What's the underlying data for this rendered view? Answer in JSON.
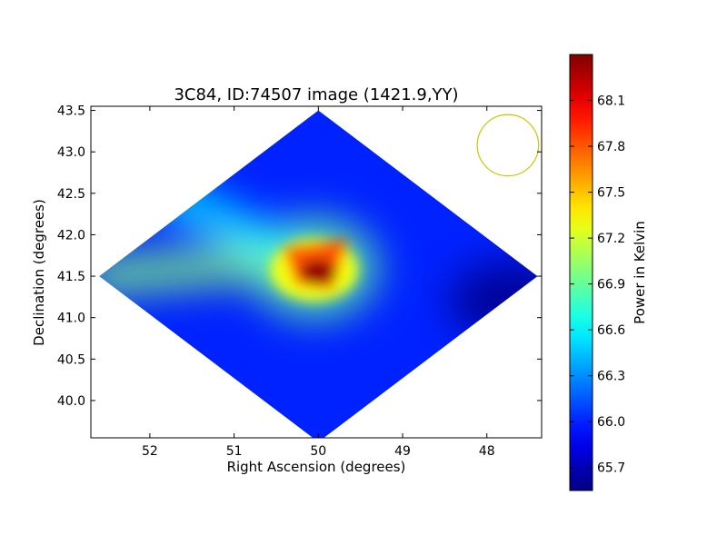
{
  "chart_data": {
    "type": "heatmap",
    "title": "3C84, ID:74507 image (1421.9,YY)",
    "xlabel": "Right Ascension (degrees)",
    "ylabel": "Declination (degrees)",
    "xlim": [
      52.7,
      47.35
    ],
    "ylim": [
      39.55,
      43.55
    ],
    "x_ticks": [
      52,
      51,
      50,
      49,
      48
    ],
    "x_tick_labels": [
      "52",
      "51",
      "50",
      "49",
      "48"
    ],
    "y_ticks": [
      40.0,
      40.5,
      41.0,
      41.5,
      42.0,
      42.5,
      43.0,
      43.5
    ],
    "y_tick_labels": [
      "40.0",
      "40.5",
      "41.0",
      "41.5",
      "42.0",
      "42.5",
      "43.0",
      "43.5"
    ],
    "colorbar": {
      "label": "Power in Kelvin",
      "min": 65.55,
      "max": 68.4,
      "ticks": [
        65.7,
        66.0,
        66.3,
        66.6,
        66.9,
        67.2,
        67.5,
        67.8,
        68.1
      ],
      "tick_labels": [
        "65.7",
        "66.0",
        "66.3",
        "66.6",
        "66.9",
        "67.2",
        "67.5",
        "67.8",
        "68.1"
      ],
      "colormap": "jet"
    },
    "map_center": {
      "ra": 50.0,
      "dec": 41.5
    },
    "map_half_extent": {
      "ra": 2.6,
      "dec": 2.0
    },
    "background_level": 66.0,
    "peak": {
      "ra": 50.0,
      "dec": 41.55,
      "value": 68.35
    },
    "features": [
      {
        "kind": "bright-core",
        "ra": 50.05,
        "dec": 41.6,
        "value": 68.3
      },
      {
        "kind": "warm-ridge",
        "from_ra": 52.6,
        "from_dec": 41.5,
        "to_ra": 50.3,
        "to_dec": 41.7,
        "value": 67.0
      },
      {
        "kind": "warm-ridge",
        "from_ra": 51.8,
        "from_dec": 42.5,
        "to_ra": 50.4,
        "to_dec": 41.8,
        "value": 66.6
      },
      {
        "kind": "cold-lobe",
        "ra": 47.7,
        "dec": 41.2,
        "value": 65.6
      }
    ],
    "beam": {
      "ra": 47.75,
      "dec": 43.08,
      "radius_deg": 0.37,
      "color": "#c8c800"
    }
  }
}
